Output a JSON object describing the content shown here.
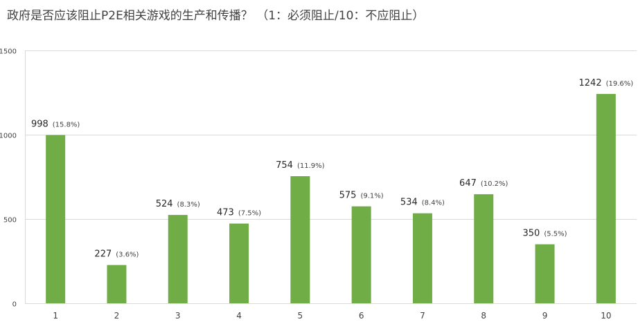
{
  "chart_data": {
    "type": "bar",
    "title": "政府是否应该阻止P2E相关游戏的生产和传播？ （1：必须阻止/10：不应阻止）",
    "categories": [
      "1",
      "2",
      "3",
      "4",
      "5",
      "6",
      "7",
      "8",
      "9",
      "10"
    ],
    "values": [
      998,
      227,
      524,
      473,
      754,
      575,
      534,
      647,
      350,
      1242
    ],
    "percent_labels": [
      "(15.8%)",
      "(3.6%)",
      "(8.3%)",
      "(7.5%)",
      "(11.9%)",
      "(9.1%)",
      "(8.4%)",
      "(10.2%)",
      "(5.5%)",
      "(19.6%)"
    ],
    "ylim": [
      0,
      1500
    ],
    "yticks": [
      0,
      500,
      1000,
      1500
    ],
    "xlabel": "",
    "ylabel": "",
    "grid": true,
    "legend": "none",
    "colors": {
      "bar": "#70ad47",
      "grid": "#d9d9d9",
      "axis_text": "#404040",
      "value_text": "#262626",
      "percent_text": "#404040"
    }
  }
}
